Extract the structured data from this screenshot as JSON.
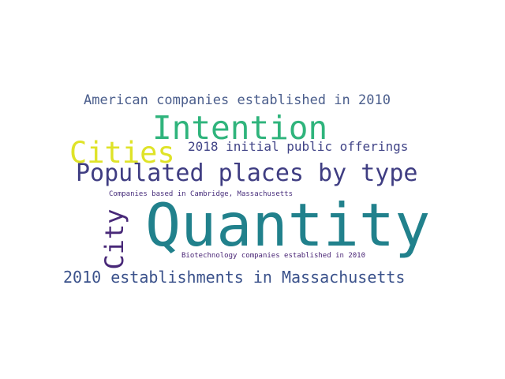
{
  "wordcloud": {
    "words": [
      {
        "text": "American companies established in 2010",
        "color": "#4b5e8c"
      },
      {
        "text": "Intention",
        "color": "#2fb47c"
      },
      {
        "text": "Cities",
        "color": "#dfe328"
      },
      {
        "text": "2018 initial public offerings",
        "color": "#414487"
      },
      {
        "text": "Populated places by type",
        "color": "#3f3d82"
      },
      {
        "text": "Companies based in Cambridge, Massachusetts",
        "color": "#472d7b"
      },
      {
        "text": "Quantity",
        "color": "#21818c"
      },
      {
        "text": "City",
        "color": "#482878"
      },
      {
        "text": "Biotechnology companies established in 2010",
        "color": "#482374"
      },
      {
        "text": "2010 establishments in Massachusetts",
        "color": "#3b528b"
      }
    ]
  }
}
